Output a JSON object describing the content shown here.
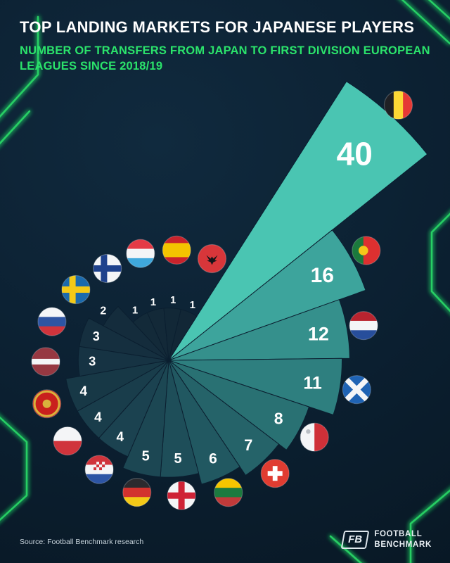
{
  "title": "TOP LANDING MARKETS FOR JAPANESE PLAYERS",
  "subtitle_line1": "NUMBER OF TRANSFERS FROM JAPAN TO FIRST DIVISION EUROPEAN",
  "subtitle_line2": "LEAGUES SINCE 2018/19",
  "source": "Source: Football Benchmark research",
  "logo": {
    "monogram": "FB",
    "line1": "FOOTBALL",
    "line2": "BENCHMARK"
  },
  "colors": {
    "background": "#0b1f30",
    "accent_green": "#2be36b",
    "wedge_max": "#4ac5b2",
    "wedge_min": "#122736",
    "text": "#ffffff"
  },
  "chart_data": {
    "type": "rose",
    "title": "Top landing markets for Japanese players",
    "subtitle": "Number of transfers from Japan to first division European leagues since 2018/19",
    "unit": "transfers",
    "legend_position": "none",
    "max_value": 40,
    "first_wedge_center_deg": 42,
    "angle_step_deg": 18.947,
    "series": [
      {
        "country": "Belgium",
        "value": 40,
        "color": "#4ac5b2"
      },
      {
        "country": "Portugal",
        "value": 16,
        "color": "#3da49c"
      },
      {
        "country": "Netherlands",
        "value": 12,
        "color": "#35908c"
      },
      {
        "country": "Scotland",
        "value": 11,
        "color": "#2e7f7f"
      },
      {
        "country": "Malta",
        "value": 8,
        "color": "#297173"
      },
      {
        "country": "Switzerland",
        "value": 7,
        "color": "#256369"
      },
      {
        "country": "Lithuania",
        "value": 6,
        "color": "#215861"
      },
      {
        "country": "England",
        "value": 5,
        "color": "#1e4e59"
      },
      {
        "country": "Germany",
        "value": 5,
        "color": "#1c4753"
      },
      {
        "country": "Croatia",
        "value": 4,
        "color": "#1b4250"
      },
      {
        "country": "Poland",
        "value": 4,
        "color": "#193d4b"
      },
      {
        "country": "Montenegro",
        "value": 4,
        "color": "#173846"
      },
      {
        "country": "Latvia",
        "value": 3,
        "color": "#163343"
      },
      {
        "country": "Russia",
        "value": 3,
        "color": "#152f3f"
      },
      {
        "country": "Sweden",
        "value": 2,
        "color": "#142c3c"
      },
      {
        "country": "Finland",
        "value": 1,
        "color": "#132a39"
      },
      {
        "country": "Luxembourg",
        "value": 1,
        "color": "#132938"
      },
      {
        "country": "Spain",
        "value": 1,
        "color": "#122837"
      },
      {
        "country": "Albania",
        "value": 1,
        "color": "#122736"
      }
    ],
    "flags": {
      "Belgium": {
        "kind": "v",
        "colors": [
          "#1f2024",
          "#fdd835",
          "#e53935"
        ]
      },
      "Portugal": {
        "kind": "v",
        "colors": [
          "#1b7a3d",
          "#dd3030"
        ],
        "weights": [
          2,
          3
        ],
        "badge": {
          "shape": "circle",
          "color": "#f5c71a",
          "x": 0.4,
          "y": 0.5,
          "r": 0.17
        }
      },
      "Netherlands": {
        "kind": "h",
        "colors": [
          "#b9242f",
          "#f4f5f7",
          "#274e9b"
        ]
      },
      "Scotland": {
        "kind": "saltire",
        "bg": "#1f63b4",
        "cross": "#f4f5f7"
      },
      "Malta": {
        "kind": "v",
        "colors": [
          "#f4f5f7",
          "#cf3038"
        ],
        "badge": {
          "shape": "circle",
          "color": "#b9bec4",
          "x": 0.28,
          "y": 0.3,
          "r": 0.08
        }
      },
      "Switzerland": {
        "kind": "plus",
        "bg": "#e03c31",
        "cross": "#ffffff"
      },
      "Lithuania": {
        "kind": "h",
        "colors": [
          "#f6c500",
          "#1d7a3f",
          "#c13a3a"
        ]
      },
      "England": {
        "kind": "cross",
        "bg": "#f4f5f7",
        "cross": "#cf2336",
        "cx": 0.5
      },
      "Germany": {
        "kind": "h",
        "colors": [
          "#2a2a2e",
          "#d2322e",
          "#f3c917"
        ]
      },
      "Croatia": {
        "kind": "h",
        "colors": [
          "#d0343c",
          "#f4f5f7",
          "#2d55a5"
        ],
        "badge": {
          "shape": "checker",
          "colors": [
            "#d0343c",
            "#f4f5f7"
          ]
        }
      },
      "Poland": {
        "kind": "h",
        "colors": [
          "#f4f5f7",
          "#d0343c"
        ]
      },
      "Montenegro": {
        "kind": "solid",
        "color": "#c9201d",
        "ring": "#d9b23c",
        "badge": {
          "shape": "circle",
          "color": "#d9b23c",
          "x": 0.5,
          "y": 0.5,
          "r": 0.15
        }
      },
      "Latvia": {
        "kind": "h",
        "colors": [
          "#963842",
          "#f4f5f7",
          "#963842"
        ],
        "weights": [
          2,
          1,
          2
        ]
      },
      "Russia": {
        "kind": "h",
        "colors": [
          "#f4f5f7",
          "#2e55a3",
          "#d0343c"
        ]
      },
      "Sweden": {
        "kind": "cross",
        "bg": "#1b6aad",
        "cross": "#f3c917",
        "cx": 0.38
      },
      "Finland": {
        "kind": "cross",
        "bg": "#f4f5f7",
        "cross": "#1e418c",
        "cx": 0.38
      },
      "Luxembourg": {
        "kind": "h",
        "colors": [
          "#e43a46",
          "#f4f5f7",
          "#3fa8dc"
        ]
      },
      "Spain": {
        "kind": "h",
        "colors": [
          "#c8232c",
          "#f3c400",
          "#c8232c"
        ],
        "weights": [
          1,
          2,
          1
        ]
      },
      "Albania": {
        "kind": "solid",
        "color": "#d8363a",
        "badge": {
          "shape": "eagle",
          "color": "#15151a"
        }
      }
    }
  }
}
